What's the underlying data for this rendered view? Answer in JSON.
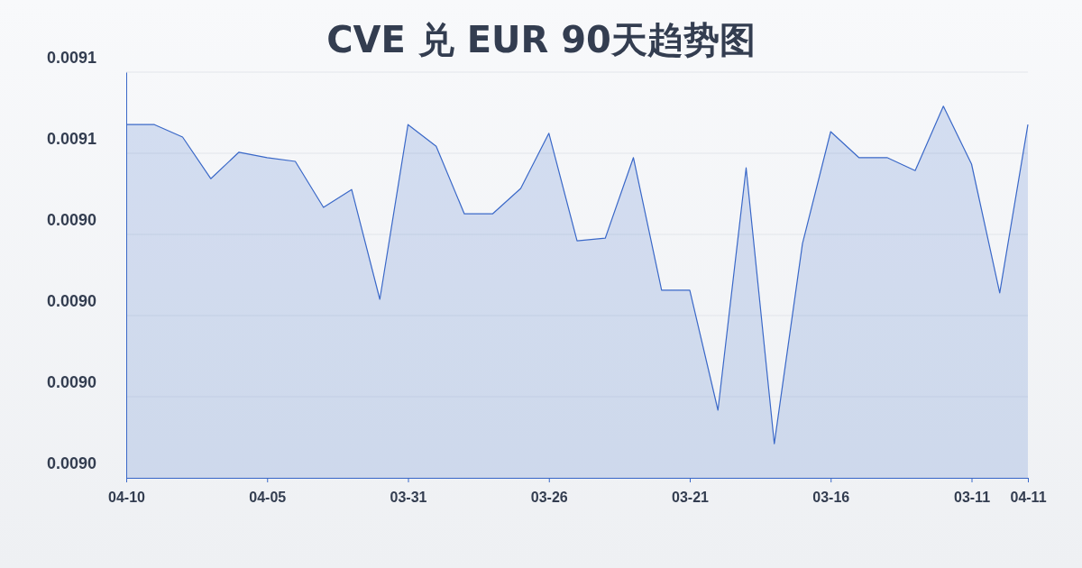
{
  "chart_data": {
    "type": "area",
    "title": "CVE 兑 EUR 90天趋势图",
    "categories": [
      "04-10",
      null,
      null,
      null,
      null,
      "04-05",
      null,
      null,
      null,
      null,
      "03-31",
      null,
      null,
      null,
      null,
      "03-26",
      null,
      null,
      null,
      null,
      "03-21",
      null,
      null,
      null,
      null,
      "03-16",
      null,
      null,
      null,
      null,
      "03-11",
      null,
      "04-11"
    ],
    "series": [
      {
        "color": "#3a68c8",
        "values": [
          0.0090653,
          0.0090653,
          0.009063,
          0.0090553,
          0.0090602,
          0.0090592,
          0.0090585,
          0.00905,
          0.0090533,
          0.009033,
          0.0090653,
          0.0090613,
          0.0090488,
          0.0090488,
          0.0090535,
          0.0090637,
          0.0090438,
          0.0090443,
          0.0090592,
          0.0090347,
          0.0090347,
          0.0090125,
          0.0090573,
          0.0090063,
          0.0090433,
          0.009064,
          0.0090592,
          0.0090592,
          0.0090568,
          0.0090687,
          0.009058,
          0.0090342,
          0.0090653
        ]
      }
    ],
    "ylim": [
      0.009,
      0.009075
    ],
    "yticks": [
      {
        "value": 0.009,
        "label": "0.0090"
      },
      {
        "value": 0.009015,
        "label": "0.0090"
      },
      {
        "value": 0.00903,
        "label": "0.0090"
      },
      {
        "value": 0.009045,
        "label": "0.0090"
      },
      {
        "value": 0.00906,
        "label": "0.0091"
      },
      {
        "value": 0.009075,
        "label": "0.0091"
      }
    ],
    "grid": "y"
  }
}
